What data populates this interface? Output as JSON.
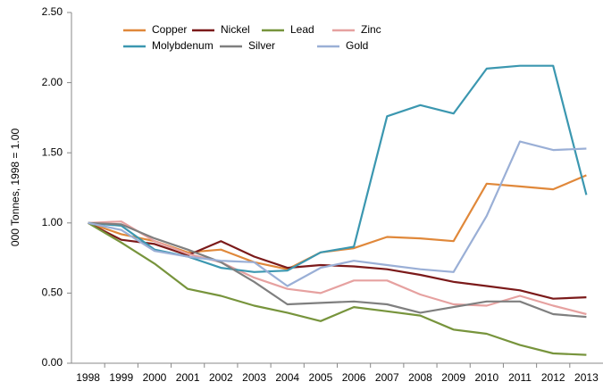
{
  "chart_data": {
    "type": "line",
    "ylabel": "000 Tonnes, 1998 = 1.00",
    "categories": [
      "1998",
      "1999",
      "2000",
      "2001",
      "2002",
      "2003",
      "2004",
      "2005",
      "2006",
      "2007",
      "2008",
      "2009",
      "2010",
      "2011",
      "2012",
      "2013"
    ],
    "series": [
      {
        "name": "Copper",
        "color": "#e0883a",
        "values": [
          1.0,
          0.92,
          0.87,
          0.79,
          0.81,
          0.72,
          0.67,
          0.79,
          0.82,
          0.9,
          0.89,
          0.87,
          1.28,
          1.26,
          1.24,
          1.34
        ]
      },
      {
        "name": "Nickel",
        "color": "#7b1a1a",
        "values": [
          1.0,
          0.88,
          0.85,
          0.77,
          0.87,
          0.76,
          0.68,
          0.7,
          0.69,
          0.67,
          0.63,
          0.58,
          0.55,
          0.52,
          0.46,
          0.47
        ]
      },
      {
        "name": "Lead",
        "color": "#77943c",
        "values": [
          1.0,
          0.86,
          0.71,
          0.53,
          0.48,
          0.41,
          0.36,
          0.3,
          0.4,
          0.37,
          0.34,
          0.24,
          0.21,
          0.13,
          0.07,
          0.06
        ]
      },
      {
        "name": "Zinc",
        "color": "#e6a1a0",
        "values": [
          1.0,
          1.01,
          0.87,
          0.78,
          0.72,
          0.61,
          0.53,
          0.5,
          0.59,
          0.59,
          0.49,
          0.42,
          0.41,
          0.48,
          0.41,
          0.35
        ]
      },
      {
        "name": "Molybdenum",
        "color": "#3b97b0",
        "values": [
          1.0,
          0.98,
          0.81,
          0.76,
          0.68,
          0.65,
          0.66,
          0.79,
          0.83,
          1.76,
          1.84,
          1.78,
          2.1,
          2.12,
          2.12,
          1.2
        ]
      },
      {
        "name": "Silver",
        "color": "#7f7f7f",
        "values": [
          1.0,
          0.99,
          0.89,
          0.81,
          0.72,
          0.58,
          0.42,
          0.43,
          0.44,
          0.42,
          0.36,
          0.4,
          0.44,
          0.44,
          0.35,
          0.33
        ]
      },
      {
        "name": "Gold",
        "color": "#9aafd6",
        "values": [
          1.0,
          0.95,
          0.8,
          0.76,
          0.73,
          0.72,
          0.55,
          0.68,
          0.73,
          0.7,
          0.67,
          0.65,
          1.05,
          1.58,
          1.52,
          1.53
        ]
      }
    ],
    "ylim": [
      0,
      2.5
    ],
    "yticks": [
      {
        "value": 0,
        "label": "0.00"
      },
      {
        "value": 0.5,
        "label": "0.50"
      },
      {
        "value": 1,
        "label": "1.00"
      },
      {
        "value": 1.5,
        "label": "1.50"
      },
      {
        "value": 2,
        "label": "2.00"
      },
      {
        "value": 2.5,
        "label": "2.50"
      }
    ],
    "grid": false,
    "legend": "upper left"
  }
}
